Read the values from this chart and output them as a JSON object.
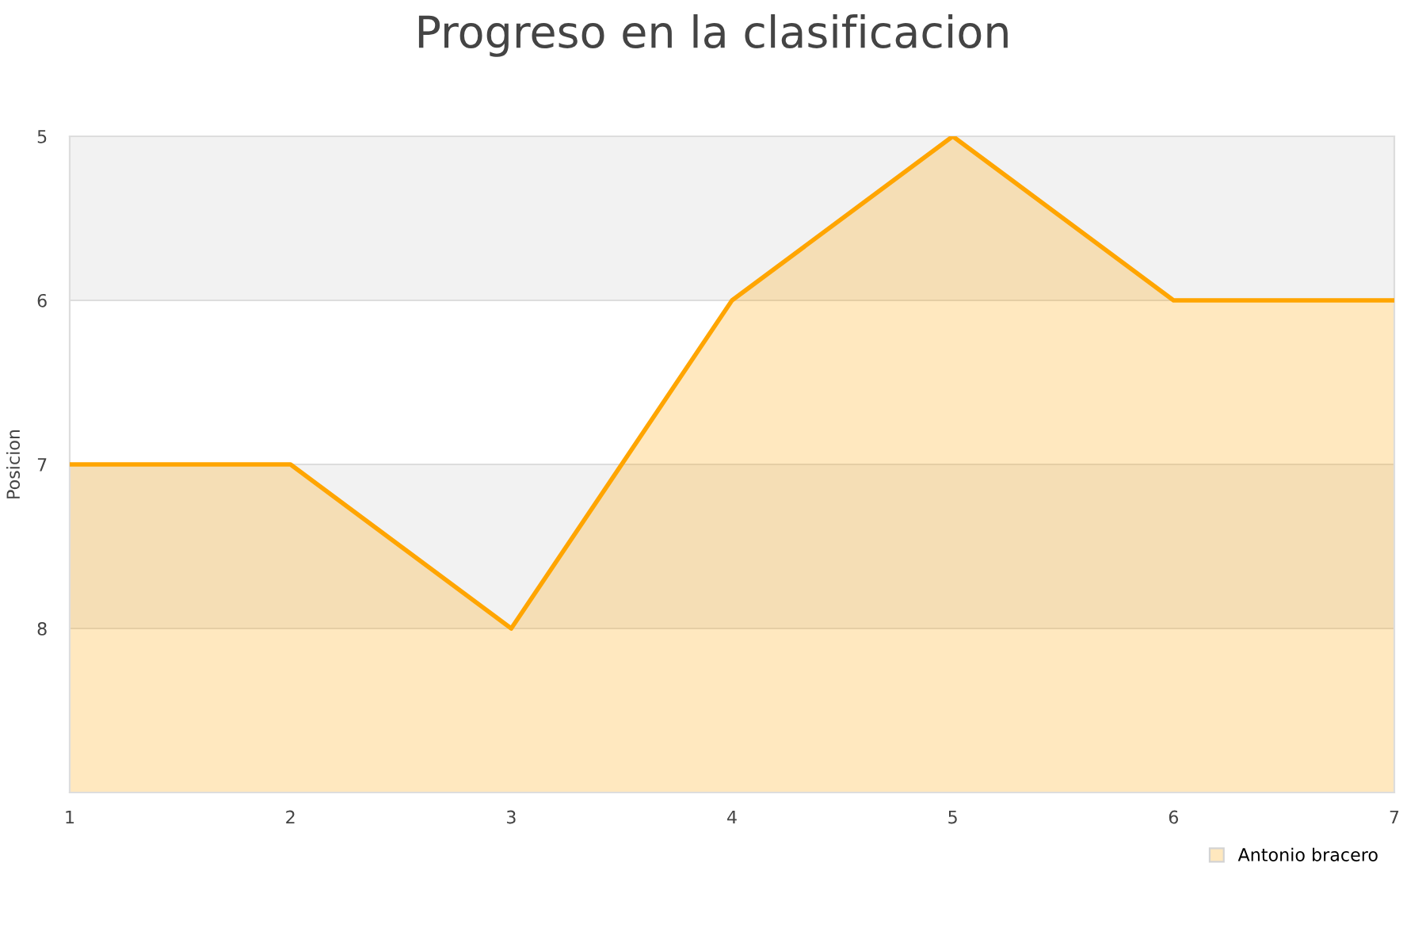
{
  "chart_data": {
    "type": "area",
    "title": "Progreso en la clasificacion",
    "ylabel": "Posicion",
    "x": [
      1,
      2,
      3,
      4,
      5,
      6,
      7
    ],
    "series": [
      {
        "name": "Antonio bracero",
        "color": "#ffa500",
        "values": [
          7,
          7,
          8,
          6,
          5,
          6,
          6
        ]
      }
    ],
    "xlim": [
      1,
      7
    ],
    "xticks": [
      1,
      2,
      3,
      4,
      5,
      6,
      7
    ],
    "ylim": [
      9,
      5
    ],
    "yticks": [
      5,
      6,
      7,
      8
    ],
    "bands": [
      {
        "axis": "y",
        "from": 5,
        "to": 6,
        "color": "#f2f2f2"
      },
      {
        "axis": "y",
        "from": 7,
        "to": 8,
        "color": "#f2f2f2"
      }
    ],
    "grid": "y",
    "legend": "bottom right"
  }
}
